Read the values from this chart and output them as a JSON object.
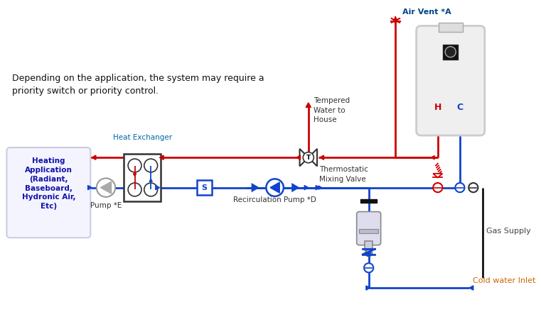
{
  "bg_color": "#ffffff",
  "red": "#cc0000",
  "blue": "#1144cc",
  "title_text": "Depending on the application, the system may require a\npriority switch or priority control.",
  "heating_app_line1": "Heating",
  "heating_app_line2": "Application",
  "heating_app_line3": "(Radiant,",
  "heating_app_line4": "Baseboard,",
  "heating_app_line5": "Hydronic Air,",
  "heating_app_line6": "Etc)",
  "heat_exchanger_label": "Heat Exchanger",
  "pump_e_label": "Pump *E",
  "recirc_pump_label": "Recirculation Pump *D",
  "tmv_label": "Thermostatic\nMixing Valve",
  "tempered_label": "Tempered\nWater to\nHouse",
  "air_vent_label": "Air Vent *A",
  "cold_water_label": "Cold water Inlet",
  "gas_supply_label": "Gas Supply",
  "h_label": "H",
  "c_label": "C",
  "lw": 2.0,
  "arrow_size": 6
}
